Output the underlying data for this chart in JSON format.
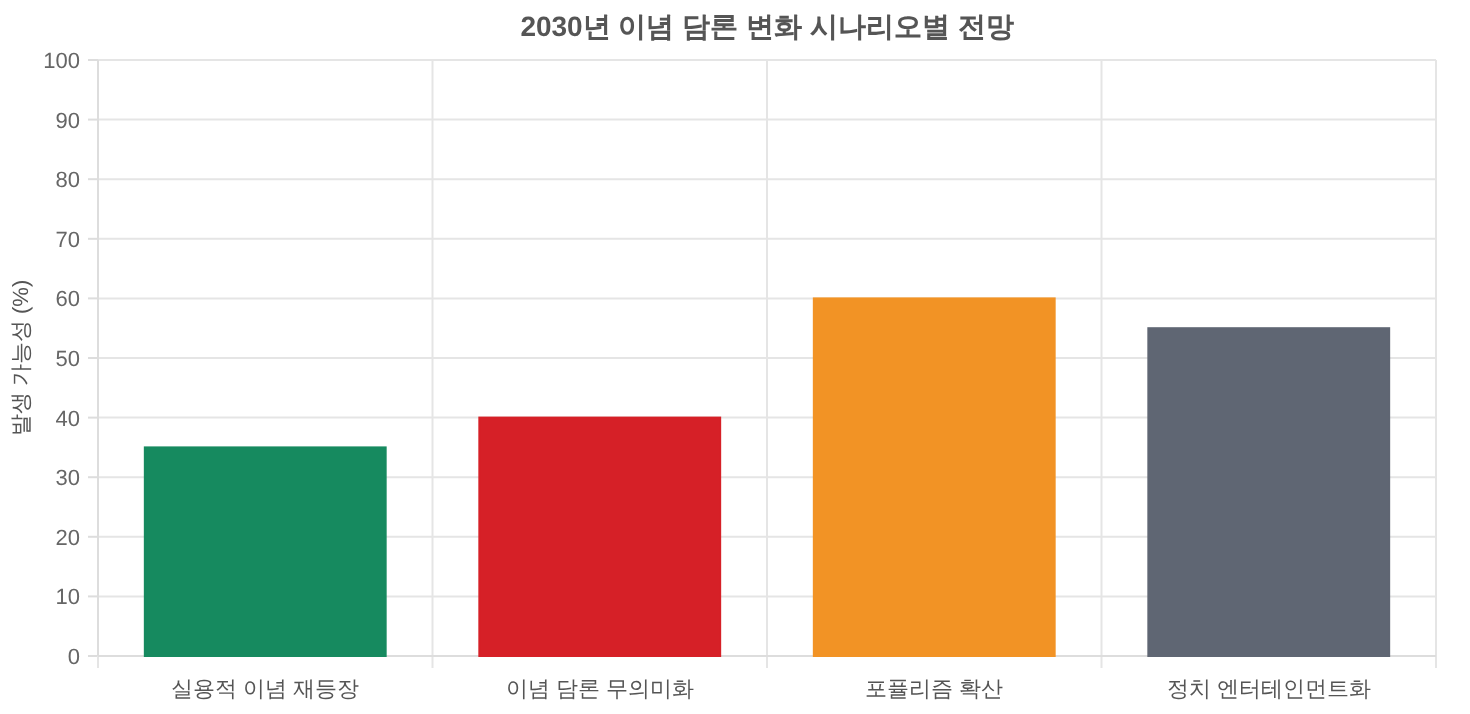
{
  "chart_data": {
    "type": "bar",
    "title": "2030년 이념 담론 변화 시나리오별 전망",
    "ylabel": "발생 가능성 (%)",
    "categories": [
      "실용적 이념 재등장",
      "이념 담론 무의미화",
      "포퓰리즘 확산",
      "정치 엔터테인먼트화"
    ],
    "values": [
      35,
      40,
      60,
      55
    ],
    "colors": [
      "#168a5f",
      "#d62027",
      "#f29325",
      "#5f6673"
    ],
    "ylim": [
      0,
      100
    ],
    "yticks": [
      0,
      10,
      20,
      30,
      40,
      50,
      60,
      70,
      80,
      90,
      100
    ],
    "grid": true
  }
}
